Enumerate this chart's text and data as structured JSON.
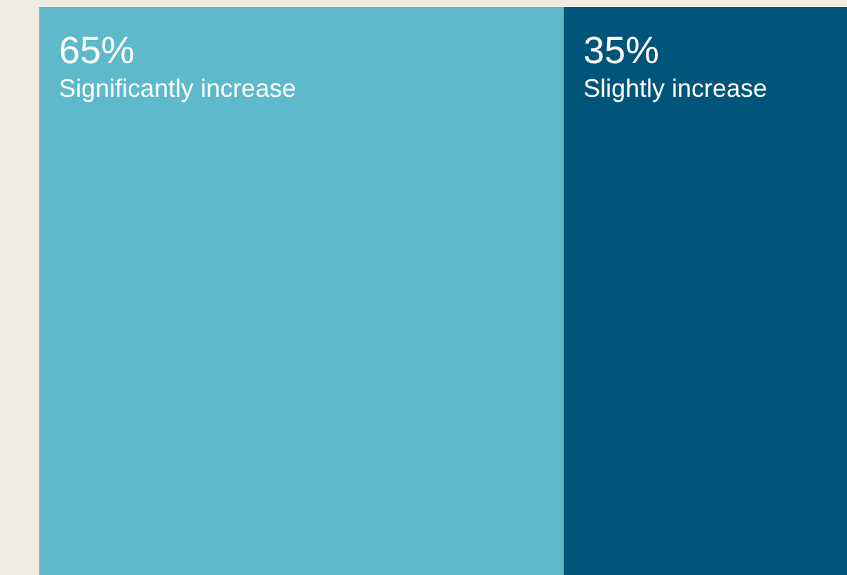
{
  "chart_data": {
    "type": "bar",
    "orientation": "horizontal",
    "stacked": true,
    "categories": [
      null
    ],
    "xlim": [
      0,
      100
    ],
    "tick_labels": false,
    "legend": false,
    "series": [
      {
        "name": "Significantly increase",
        "color": "#5eb9cb",
        "values": [
          65
        ],
        "value_labels": [
          "65%"
        ]
      },
      {
        "name": "Slightly increase",
        "color": "#02557a",
        "values": [
          35
        ],
        "value_labels": [
          "35%"
        ]
      }
    ]
  }
}
